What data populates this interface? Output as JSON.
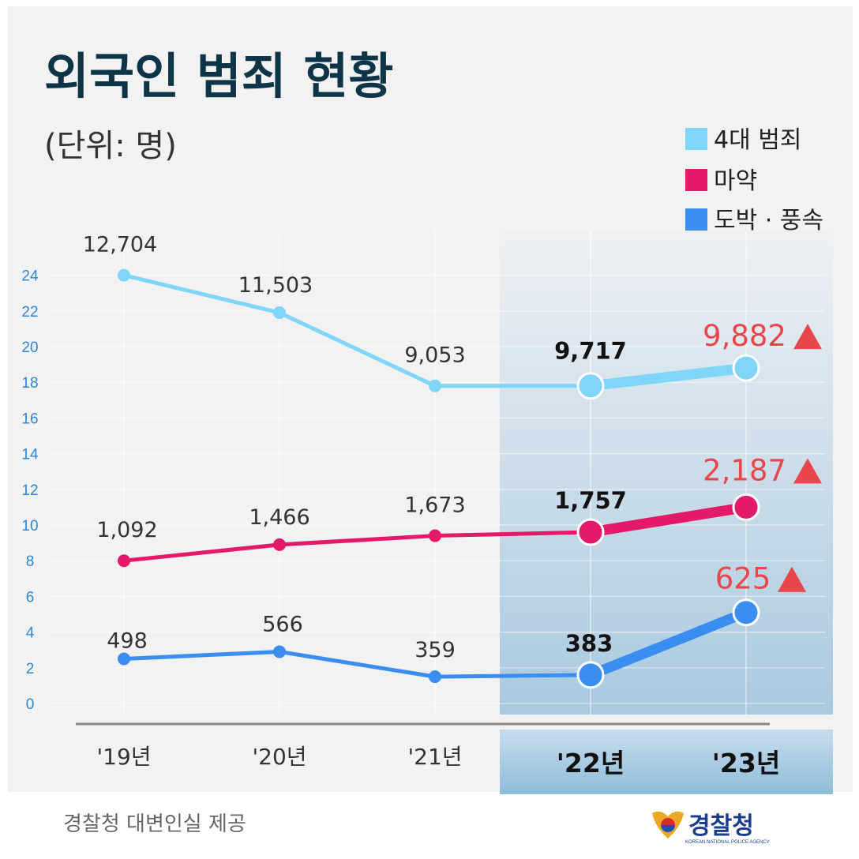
{
  "title": "외국인 범죄 현황",
  "unit": "(단위: 명)",
  "footer": "경찰청 대변인실 제공",
  "logo": {
    "text": "경찰청",
    "subtext": "KOREAN NATIONAL POLICE AGENCY"
  },
  "colors": {
    "series_major": "#7fd6f8",
    "series_drugs": "#e3196a",
    "series_gambling": "#3a8ef0",
    "increase_red": "#e8464a",
    "title": "#0e3447",
    "axis_ticks": "#2f86d6"
  },
  "chart_data": {
    "type": "line",
    "title": "외국인 범죄 현황",
    "unit": "(단위: 명)",
    "categories": [
      "'19년",
      "'20년",
      "'21년",
      "'22년",
      "'23년"
    ],
    "highlight_categories": [
      "'22년",
      "'23년"
    ],
    "y_axis": {
      "ticks": [
        "0",
        "2",
        "4",
        "6",
        "8",
        "10",
        "12",
        "14",
        "16",
        "18",
        "20",
        "22",
        "24"
      ],
      "ylim": [
        0,
        24
      ]
    },
    "legend_position": "top-right",
    "series": [
      {
        "key": "major",
        "name": "4대 범죄",
        "color": "#7fd6f8",
        "plot_values": [
          24,
          21.9,
          17.8,
          17.8,
          18.8
        ],
        "labels": [
          "12,704",
          "11,503",
          "9,053",
          "9,717",
          "9,882"
        ]
      },
      {
        "key": "drugs",
        "name": "마약",
        "color": "#e3196a",
        "plot_values": [
          8,
          8.9,
          9.4,
          9.6,
          11.0
        ],
        "labels": [
          "1,092",
          "1,466",
          "1,673",
          "1,757",
          "2,187"
        ]
      },
      {
        "key": "gambling",
        "name": "도박 · 풍속",
        "color": "#3a8ef0",
        "plot_values": [
          2.5,
          2.9,
          1.5,
          1.6,
          5.1
        ],
        "labels": [
          "498",
          "566",
          "359",
          "383",
          "625"
        ]
      }
    ],
    "increase_marker": "▲"
  }
}
